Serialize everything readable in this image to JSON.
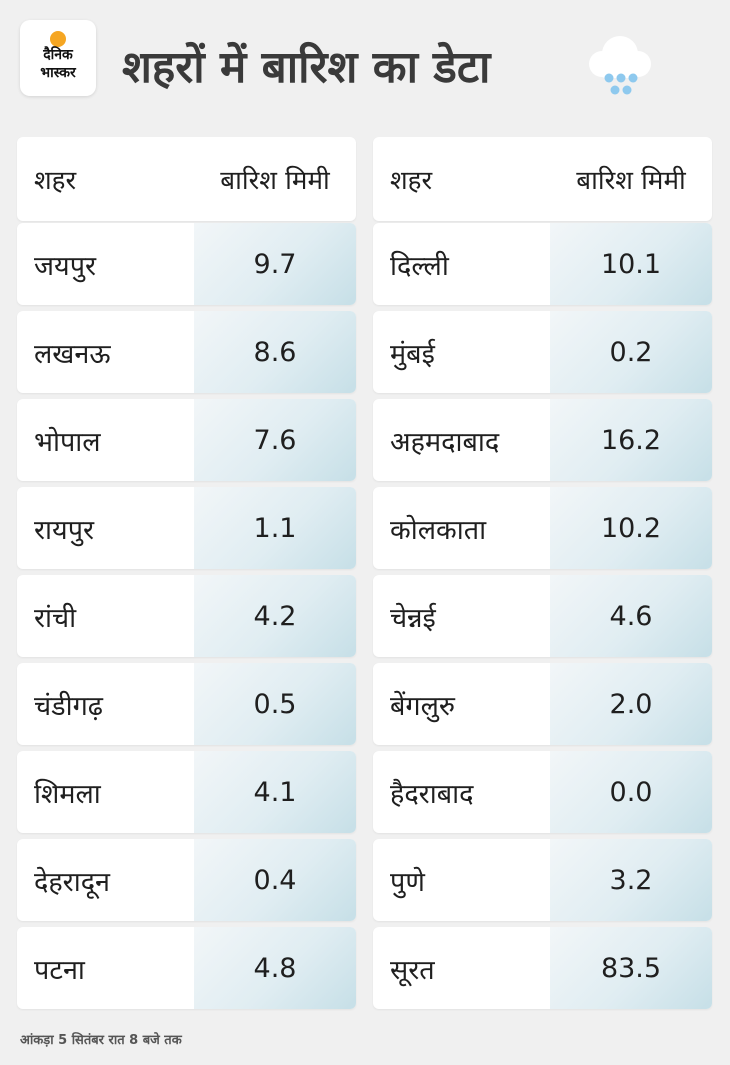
{
  "logo": {
    "line1": "दैनिक",
    "line2": "भास्कर"
  },
  "title": "शहरों में बारिश का डेटा",
  "table": {
    "col_city": "शहर",
    "col_rain": "बारिश मिमी",
    "left": [
      {
        "city": "जयपुर",
        "rain": "9.7"
      },
      {
        "city": "लखनऊ",
        "rain": "8.6"
      },
      {
        "city": "भोपाल",
        "rain": "7.6"
      },
      {
        "city": "रायपुर",
        "rain": "1.1"
      },
      {
        "city": "रांची",
        "rain": "4.2"
      },
      {
        "city": "चंडीगढ़",
        "rain": "0.5"
      },
      {
        "city": "शिमला",
        "rain": "4.1"
      },
      {
        "city": "देहरादून",
        "rain": "0.4"
      },
      {
        "city": "पटना",
        "rain": "4.8"
      }
    ],
    "right": [
      {
        "city": "दिल्ली",
        "rain": "10.1"
      },
      {
        "city": "मुंबई",
        "rain": "0.2"
      },
      {
        "city": "अहमदाबाद",
        "rain": "16.2"
      },
      {
        "city": "कोलकाता",
        "rain": "10.2"
      },
      {
        "city": "चेन्नई",
        "rain": "4.6"
      },
      {
        "city": "बेंगलुरु",
        "rain": "2.0"
      },
      {
        "city": "हैदराबाद",
        "rain": "0.0"
      },
      {
        "city": "पुणे",
        "rain": "3.2"
      },
      {
        "city": "सूरत",
        "rain": "83.5"
      }
    ]
  },
  "footer_note": "आंकड़ा 5 सितंबर रात 8 बजे तक",
  "colors": {
    "accent_sun": "#f5a623",
    "rain_drop": "#8ec9ee",
    "value_bg": "#d6e8ee"
  },
  "icons": {
    "header_icon": "rain-cloud-icon"
  }
}
